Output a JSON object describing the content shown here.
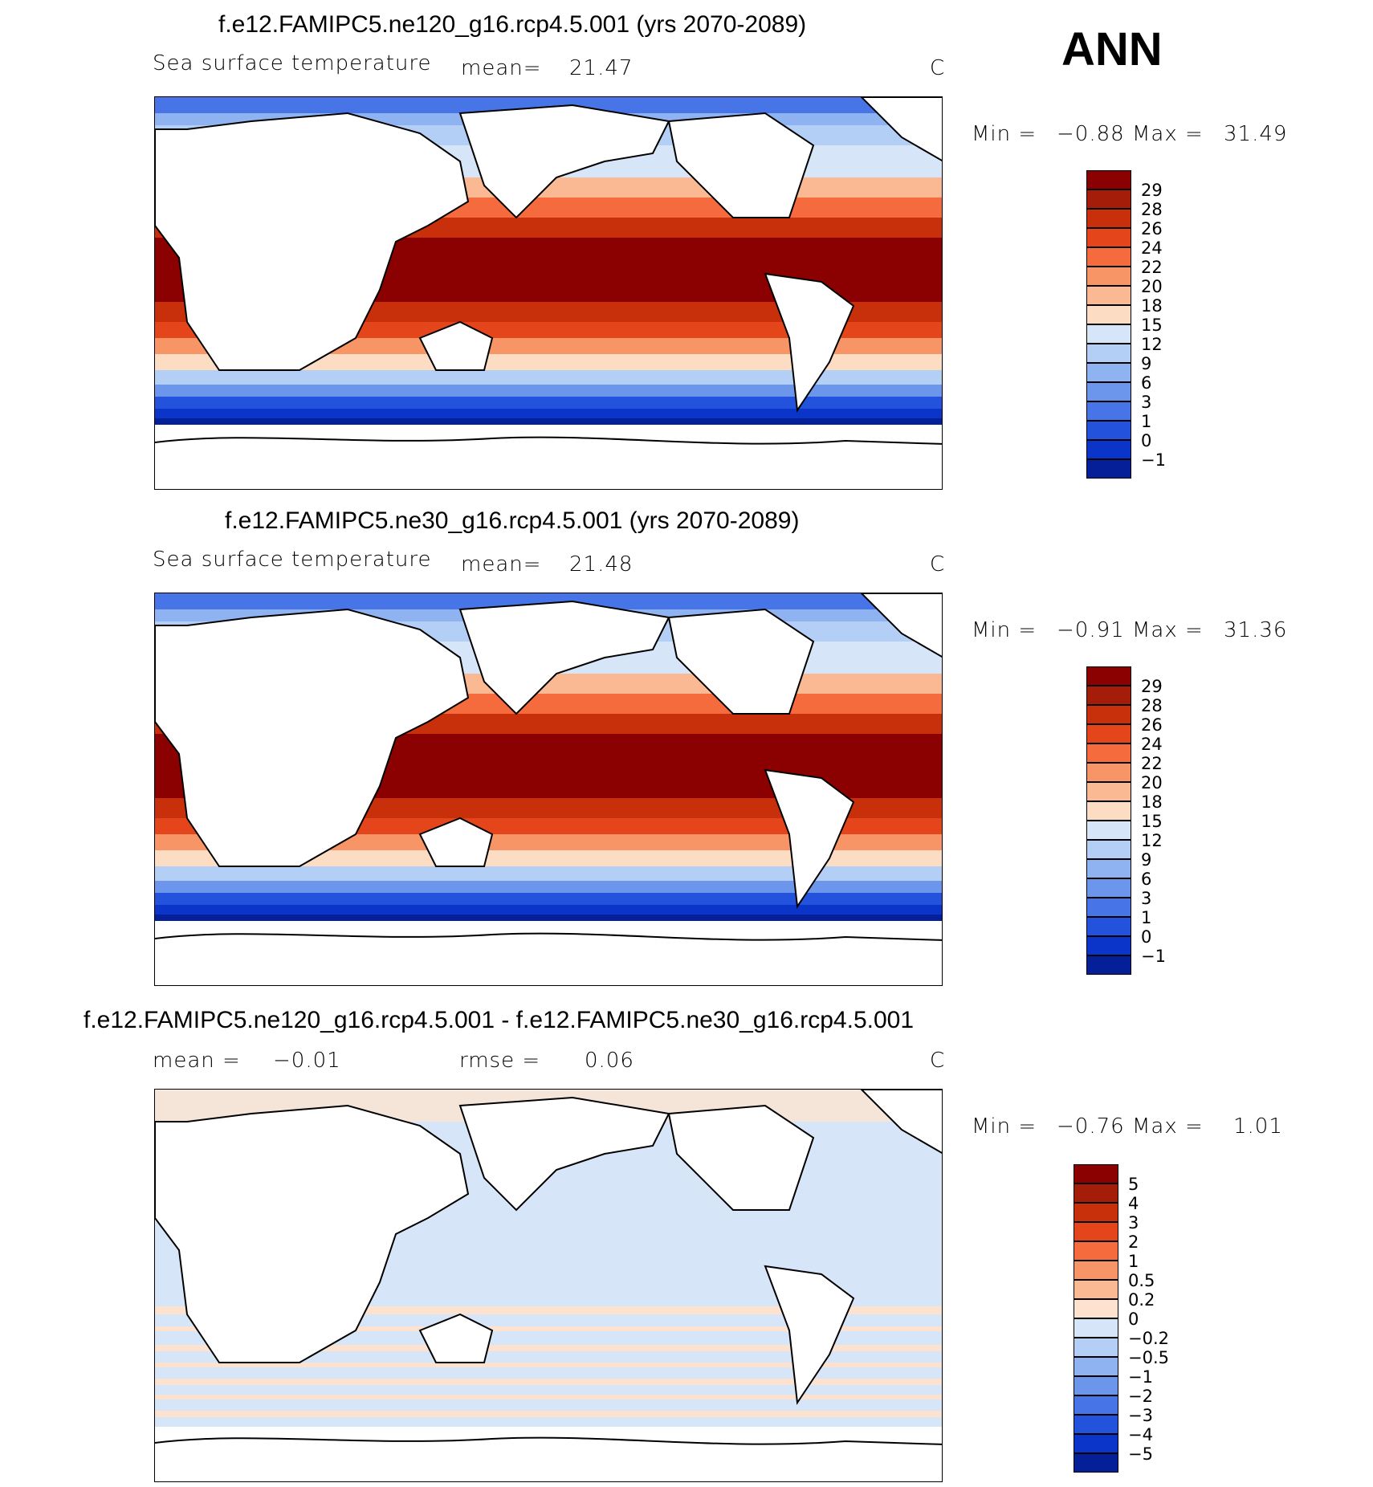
{
  "season_label": "ANN",
  "panels": [
    {
      "title": "f.e12.FAMIPC5.ne120_g16.rcp4.5.001 (yrs 2070-2089)",
      "variable": "Sea surface temperature",
      "mean_label": "mean=",
      "mean_value": "21.47",
      "units": "C",
      "min_label": "Min =",
      "min_value": "−0.88",
      "max_label": "Max =",
      "max_value": "31.49",
      "colorbar_labels": [
        "29",
        "28",
        "26",
        "24",
        "22",
        "20",
        "18",
        "15",
        "12",
        "9",
        "6",
        "3",
        "1",
        "0",
        "−1"
      ]
    },
    {
      "title": "f.e12.FAMIPC5.ne30_g16.rcp4.5.001 (yrs 2070-2089)",
      "variable": "Sea surface temperature",
      "mean_label": "mean=",
      "mean_value": "21.48",
      "units": "C",
      "min_label": "Min =",
      "min_value": "−0.91",
      "max_label": "Max =",
      "max_value": "31.36",
      "colorbar_labels": [
        "29",
        "28",
        "26",
        "24",
        "22",
        "20",
        "18",
        "15",
        "12",
        "9",
        "6",
        "3",
        "1",
        "0",
        "−1"
      ]
    },
    {
      "title": "f.e12.FAMIPC5.ne120_g16.rcp4.5.001 - f.e12.FAMIPC5.ne30_g16.rcp4.5.001",
      "mean_label": "mean =",
      "mean_value": "−0.01",
      "rmse_label": "rmse =",
      "rmse_value": "0.06",
      "units": "C",
      "min_label": "Min =",
      "min_value": "−0.76",
      "max_label": "Max =",
      "max_value": "1.01",
      "colorbar_labels": [
        "5",
        "4",
        "3",
        "2",
        "1",
        "0.5",
        "0.2",
        "0",
        "−0.2",
        "−0.5",
        "−1",
        "−2",
        "−3",
        "−4",
        "−5"
      ]
    }
  ],
  "colors": {
    "sst_scale": [
      "#8b0000",
      "#a41d08",
      "#c8300c",
      "#e4451a",
      "#f56b3e",
      "#f89566",
      "#fbb993",
      "#fddcc4",
      "#d6e6f8",
      "#b4cff5",
      "#8fb3f0",
      "#6b96ec",
      "#4775e7",
      "#2352dd",
      "#0a35c8",
      "#051f99"
    ],
    "diff_scale": [
      "#8b0000",
      "#a41d08",
      "#c8300c",
      "#e4451a",
      "#f56b3e",
      "#f89566",
      "#fbb993",
      "#fde3cf",
      "#d6e6f8",
      "#b4cff5",
      "#8fb3f0",
      "#6b96ec",
      "#4775e7",
      "#2352dd",
      "#0a35c8",
      "#051f99"
    ]
  }
}
